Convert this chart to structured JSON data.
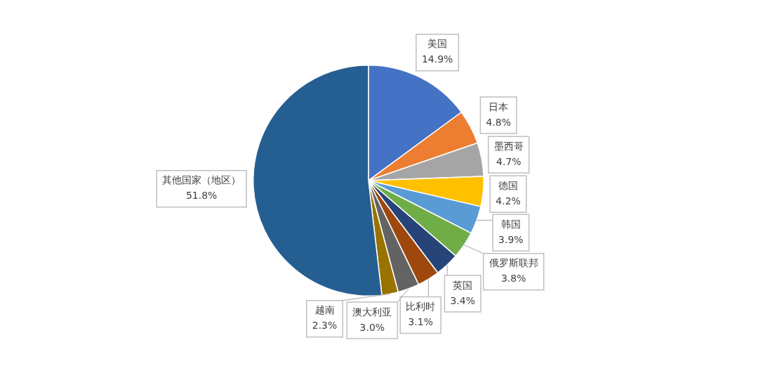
{
  "chart_data": {
    "type": "pie",
    "categories": [
      "美国",
      "日本",
      "墨西哥",
      "德国",
      "韩国",
      "俄罗斯联邦",
      "英国",
      "比利时",
      "澳大利亚",
      "越南",
      "其他国家（地区）"
    ],
    "values": [
      14.9,
      4.8,
      4.7,
      4.2,
      3.9,
      3.8,
      3.4,
      3.1,
      3.0,
      2.3,
      51.8
    ],
    "value_labels": [
      "14.9%",
      "4.8%",
      "4.7%",
      "4.2%",
      "3.9%",
      "3.8%",
      "3.4%",
      "3.1%",
      "3.0%",
      "2.3%",
      "51.8%"
    ],
    "colors": [
      "#4472c4",
      "#ed7d31",
      "#a5a5a5",
      "#ffc000",
      "#5b9bd5",
      "#70ad47",
      "#264478",
      "#9e480e",
      "#636363",
      "#997300",
      "#255e91"
    ],
    "legend": false
  }
}
